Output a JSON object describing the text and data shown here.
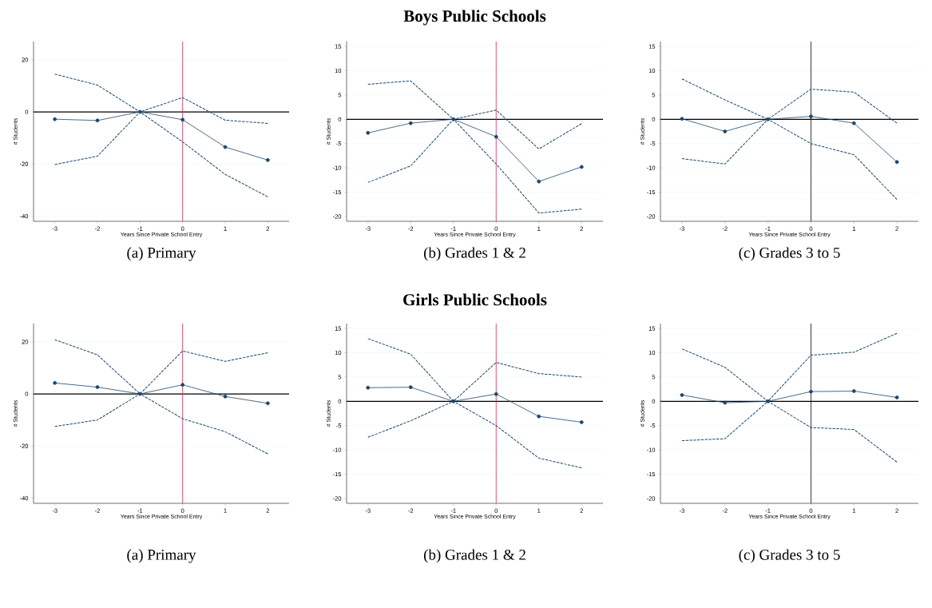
{
  "chart_data": [
    {
      "type": "line",
      "xlabel": "Years Since Private School Entry",
      "ylabel": "# Students",
      "x": [
        -3,
        -2,
        -1,
        0,
        1,
        2
      ],
      "xlim": [
        -3.5,
        2.5
      ],
      "xticks": [
        -3,
        -2,
        -1,
        0,
        1,
        2
      ],
      "ylim": [
        -42,
        27
      ],
      "yticks": [
        -40,
        -20,
        0,
        20
      ],
      "grid": "y",
      "annotations": [
        "(a) Primary"
      ],
      "ref_lines": [
        {
          "axis": "y",
          "value": 0,
          "color": "#000000"
        },
        {
          "axis": "x",
          "value": 0,
          "color": "#d6245a"
        }
      ],
      "series": [
        {
          "color": "#1a476f",
          "marker": "circle",
          "line_style": "solid",
          "values": [
            -2.8,
            -3.3,
            0,
            -3,
            -13.5,
            -18.5
          ]
        },
        {
          "color": "#1a476f",
          "marker": "none",
          "line_style": "dashed",
          "values": [
            14.5,
            10.3,
            0,
            5.5,
            -3.2,
            -4.4
          ]
        },
        {
          "color": "#1a476f",
          "marker": "none",
          "line_style": "dashed",
          "values": [
            -20.2,
            -17,
            0,
            -11.5,
            -24,
            -32.6
          ]
        }
      ]
    },
    {
      "type": "line",
      "title": "Boys Public Schools",
      "xlabel": "Years Since Private School Entry",
      "ylabel": "# Students",
      "x": [
        -3,
        -2,
        -1,
        0,
        1,
        2
      ],
      "xlim": [
        -3.5,
        2.5
      ],
      "xticks": [
        -3,
        -2,
        -1,
        0,
        1,
        2
      ],
      "ylim": [
        -21,
        16
      ],
      "yticks": [
        -20,
        -15,
        -10,
        -5,
        0,
        5,
        10,
        15
      ],
      "grid": "y",
      "annotations": [
        "(b) Grades 1 & 2"
      ],
      "ref_lines": [
        {
          "axis": "y",
          "value": 0,
          "color": "#000000"
        },
        {
          "axis": "x",
          "value": 0,
          "color": "#d6245a"
        }
      ],
      "series": [
        {
          "color": "#1a476f",
          "marker": "circle",
          "line_style": "solid",
          "values": [
            -2.8,
            -0.8,
            0,
            -3.6,
            -12.8,
            -9.8
          ]
        },
        {
          "color": "#1a476f",
          "marker": "none",
          "line_style": "dashed",
          "values": [
            7.2,
            7.9,
            0,
            1.9,
            -6.1,
            -0.9
          ]
        },
        {
          "color": "#1a476f",
          "marker": "none",
          "line_style": "dashed",
          "values": [
            -13,
            -9.6,
            0,
            -9.2,
            -19.3,
            -18.5
          ]
        }
      ]
    },
    {
      "type": "line",
      "xlabel": "Years Since Private School Entry",
      "ylabel": "# Students",
      "x": [
        -3,
        -2,
        -1,
        0,
        1,
        2
      ],
      "xlim": [
        -3.5,
        2.5
      ],
      "xticks": [
        -3,
        -2,
        -1,
        0,
        1,
        2
      ],
      "ylim": [
        -21,
        16
      ],
      "yticks": [
        -20,
        -15,
        -10,
        -5,
        0,
        5,
        10,
        15
      ],
      "grid": "y",
      "annotations": [
        "(c) Grades 3 to 5"
      ],
      "ref_lines": [
        {
          "axis": "y",
          "value": 0,
          "color": "#000000"
        },
        {
          "axis": "x",
          "value": 0,
          "color": "#000000"
        }
      ],
      "series": [
        {
          "color": "#1a476f",
          "marker": "circle",
          "line_style": "solid",
          "values": [
            0.1,
            -2.5,
            0,
            0.6,
            -0.8,
            -8.8
          ]
        },
        {
          "color": "#1a476f",
          "marker": "none",
          "line_style": "dashed",
          "values": [
            8.3,
            4,
            0,
            6.2,
            5.6,
            -0.8
          ]
        },
        {
          "color": "#1a476f",
          "marker": "none",
          "line_style": "dashed",
          "values": [
            -8.1,
            -9.2,
            0,
            -5,
            -7.3,
            -16.5
          ]
        }
      ]
    },
    {
      "type": "line",
      "xlabel": "Years Since Private School Entry",
      "ylabel": "# Students",
      "x": [
        -3,
        -2,
        -1,
        0,
        1,
        2
      ],
      "xlim": [
        -3.5,
        2.5
      ],
      "xticks": [
        -3,
        -2,
        -1,
        0,
        1,
        2
      ],
      "ylim": [
        -42,
        27
      ],
      "yticks": [
        -40,
        -20,
        0,
        20
      ],
      "grid": "y",
      "annotations": [
        "(a) Primary"
      ],
      "ref_lines": [
        {
          "axis": "y",
          "value": 0,
          "color": "#000000"
        },
        {
          "axis": "x",
          "value": 0,
          "color": "#d6245a"
        }
      ],
      "series": [
        {
          "color": "#1a476f",
          "marker": "circle",
          "line_style": "solid",
          "values": [
            4.2,
            2.6,
            0,
            3.5,
            -1,
            -3.6
          ]
        },
        {
          "color": "#1a476f",
          "marker": "none",
          "line_style": "dashed",
          "values": [
            20.8,
            15,
            0,
            16.5,
            12.5,
            15.8
          ]
        },
        {
          "color": "#1a476f",
          "marker": "none",
          "line_style": "dashed",
          "values": [
            -12.5,
            -10,
            0,
            -9.5,
            -14.5,
            -23
          ]
        }
      ]
    },
    {
      "type": "line",
      "title": "Girls Public Schools",
      "xlabel": "Years Since Private School Entry",
      "ylabel": "# Students",
      "x": [
        -3,
        -2,
        -1,
        0,
        1,
        2
      ],
      "xlim": [
        -3.5,
        2.5
      ],
      "xticks": [
        -3,
        -2,
        -1,
        0,
        1,
        2
      ],
      "ylim": [
        -21,
        16
      ],
      "yticks": [
        -20,
        -15,
        -10,
        -5,
        0,
        5,
        10,
        15
      ],
      "grid": "y",
      "annotations": [
        "(b) Grades 1 & 2"
      ],
      "ref_lines": [
        {
          "axis": "y",
          "value": 0,
          "color": "#000000"
        },
        {
          "axis": "x",
          "value": 0,
          "color": "#d6245a"
        }
      ],
      "series": [
        {
          "color": "#1a476f",
          "marker": "circle",
          "line_style": "solid",
          "values": [
            2.8,
            2.9,
            0,
            1.5,
            -3.1,
            -4.3
          ]
        },
        {
          "color": "#1a476f",
          "marker": "none",
          "line_style": "dashed",
          "values": [
            12.9,
            9.7,
            0,
            8,
            5.7,
            5
          ]
        },
        {
          "color": "#1a476f",
          "marker": "none",
          "line_style": "dashed",
          "values": [
            -7.4,
            -4,
            0,
            -5,
            -11.7,
            -13.7
          ]
        }
      ]
    },
    {
      "type": "line",
      "xlabel": "Years Since Private School Entry",
      "ylabel": "# Students",
      "x": [
        -3,
        -2,
        -1,
        0,
        1,
        2
      ],
      "xlim": [
        -3.5,
        2.5
      ],
      "xticks": [
        -3,
        -2,
        -1,
        0,
        1,
        2
      ],
      "ylim": [
        -21,
        16
      ],
      "yticks": [
        -20,
        -15,
        -10,
        -5,
        0,
        5,
        10,
        15
      ],
      "grid": "y",
      "annotations": [
        "(c) Grades 3 to 5"
      ],
      "ref_lines": [
        {
          "axis": "y",
          "value": 0,
          "color": "#000000"
        },
        {
          "axis": "x",
          "value": 0,
          "color": "#000000"
        }
      ],
      "series": [
        {
          "color": "#1a476f",
          "marker": "circle",
          "line_style": "solid",
          "values": [
            1.3,
            -0.3,
            0,
            2,
            2.1,
            0.8
          ]
        },
        {
          "color": "#1a476f",
          "marker": "none",
          "line_style": "dashed",
          "values": [
            10.8,
            7,
            0,
            9.5,
            10.1,
            14
          ]
        },
        {
          "color": "#1a476f",
          "marker": "none",
          "line_style": "dashed",
          "values": [
            -8.1,
            -7.7,
            0,
            -5.4,
            -5.8,
            -12.5
          ]
        }
      ]
    }
  ]
}
